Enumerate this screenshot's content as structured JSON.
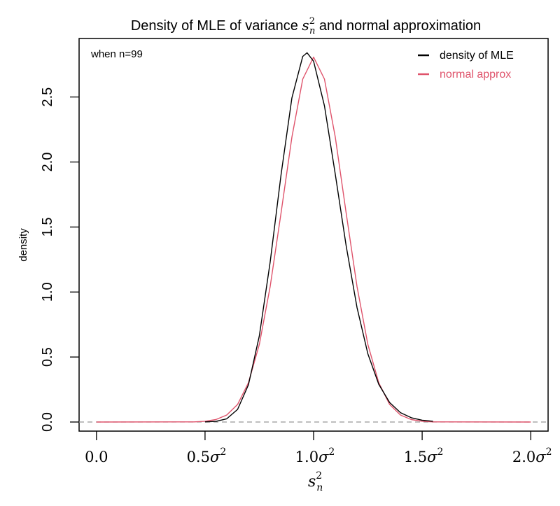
{
  "chart_data": {
    "type": "line",
    "title": {
      "prefix": "Density of MLE of variance ",
      "math_base": "s",
      "math_sup": "2",
      "math_sub": "n",
      "suffix": " and normal approximation"
    },
    "annotation": "when n=99",
    "xlabel": {
      "base": "s",
      "sup": "2",
      "sub": "n"
    },
    "ylabel": "density",
    "xlim": [
      -0.08,
      2.08
    ],
    "ylim": [
      -0.07,
      2.95
    ],
    "x_ticks": [
      {
        "value": 0.0,
        "label": "0.0",
        "sigma": false
      },
      {
        "value": 0.5,
        "label": "0.5",
        "sigma": true
      },
      {
        "value": 1.0,
        "label": "1.0",
        "sigma": true
      },
      {
        "value": 1.5,
        "label": "1.5",
        "sigma": true
      },
      {
        "value": 2.0,
        "label": "2.0",
        "sigma": true
      }
    ],
    "x_tick_sigma": {
      "symbol": "σ",
      "sup": "2"
    },
    "y_ticks": [
      {
        "value": 0.0,
        "label": "0.0"
      },
      {
        "value": 0.5,
        "label": "0.5"
      },
      {
        "value": 1.0,
        "label": "1.0"
      },
      {
        "value": 1.5,
        "label": "1.5"
      },
      {
        "value": 2.0,
        "label": "2.0"
      },
      {
        "value": 2.5,
        "label": "2.5"
      }
    ],
    "reference_line": {
      "y": 0,
      "style": "dashed",
      "color": "#999999"
    },
    "grid": false,
    "legend": {
      "position": "top-right"
    },
    "series": [
      {
        "name": "density of MLE",
        "color": "#000000",
        "x": [
          0.5,
          0.55,
          0.6,
          0.65,
          0.7,
          0.75,
          0.8,
          0.85,
          0.9,
          0.95,
          0.97,
          1.0,
          1.05,
          1.1,
          1.15,
          1.2,
          1.25,
          1.3,
          1.35,
          1.4,
          1.45,
          1.5,
          1.55
        ],
        "y": [
          0.001,
          0.005,
          0.025,
          0.097,
          0.286,
          0.663,
          1.232,
          1.902,
          2.493,
          2.812,
          2.84,
          2.775,
          2.432,
          1.905,
          1.356,
          0.881,
          0.525,
          0.29,
          0.15,
          0.072,
          0.033,
          0.014,
          0.006
        ]
      },
      {
        "name": "normal approx",
        "color": "#DF536B",
        "x": [
          0,
          0.45,
          0.5,
          0.55,
          0.6,
          0.65,
          0.7,
          0.75,
          0.8,
          0.85,
          0.9,
          0.95,
          1.0,
          1.05,
          1.1,
          1.15,
          1.2,
          1.25,
          1.3,
          1.35,
          1.4,
          1.45,
          1.5,
          1.55,
          2.0
        ],
        "y": [
          0,
          0.001,
          0.006,
          0.019,
          0.054,
          0.135,
          0.302,
          0.597,
          1.043,
          1.608,
          2.191,
          2.638,
          2.807,
          2.638,
          2.191,
          1.608,
          1.043,
          0.597,
          0.302,
          0.135,
          0.054,
          0.019,
          0.006,
          0.001,
          0
        ]
      }
    ]
  }
}
